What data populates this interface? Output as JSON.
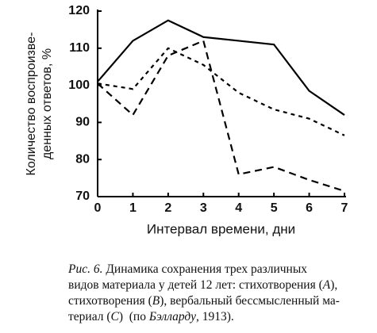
{
  "chart_data": {
    "type": "line",
    "x": [
      0,
      1,
      2,
      3,
      4,
      5,
      6,
      7
    ],
    "series": [
      {
        "color": "#000000",
        "dash": "solid",
        "values": [
          101,
          112,
          117.5,
          113,
          112,
          111,
          98.5,
          92
        ]
      },
      {
        "color": "#000000",
        "dash": "short",
        "values": [
          100.5,
          99,
          110,
          105.5,
          98,
          93.5,
          91,
          86.5
        ]
      },
      {
        "color": "#000000",
        "dash": "long",
        "values": [
          100.5,
          92,
          108,
          112,
          76,
          78,
          74.5,
          71.5
        ]
      }
    ],
    "xlim": [
      0,
      7
    ],
    "xticks": [
      0,
      1,
      2,
      3,
      4,
      5,
      6,
      7
    ],
    "ylim": [
      70,
      120
    ],
    "yticks": [
      70,
      80,
      90,
      100,
      110,
      120
    ],
    "xlabel": "Интервал времени, дни",
    "ylabel": [
      "Количество воспроизве-",
      "денных ответов, %"
    ]
  },
  "caption": [
    [
      {
        "text": "Рис. 6.",
        "italic": true
      },
      {
        "text": " Динамика сохранения трех различных",
        "italic": false
      }
    ],
    [
      {
        "text": "видов материала у детей 12 лет: стихотворения (",
        "italic": false
      },
      {
        "text": "A",
        "italic": true
      },
      {
        "text": "),",
        "italic": false
      }
    ],
    [
      {
        "text": "стихотворения (",
        "italic": false
      },
      {
        "text": "B",
        "italic": true
      },
      {
        "text": "), вербальный бессмысленный ма-",
        "italic": false
      }
    ],
    [
      {
        "text": "териал (",
        "italic": false
      },
      {
        "text": "C",
        "italic": true
      },
      {
        "text": ")  (по ",
        "italic": false
      },
      {
        "text": "Бэлларду",
        "italic": true
      },
      {
        "text": ", 1913).",
        "italic": false
      }
    ]
  ]
}
